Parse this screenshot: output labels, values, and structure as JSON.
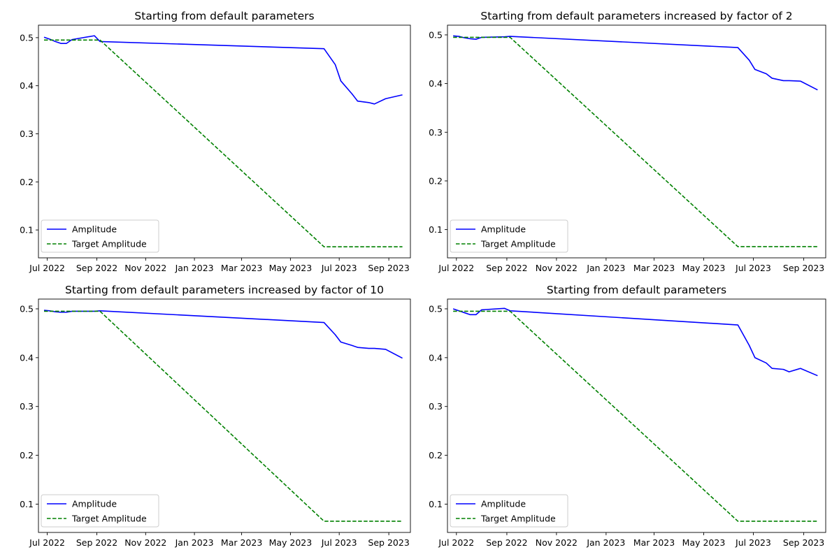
{
  "colors": {
    "amplitude": "#0000ff",
    "target": "#008000",
    "axes": "#000000",
    "legend_border": "#cccccc",
    "background": "#ffffff"
  },
  "chart_data": [
    {
      "type": "line",
      "title": "Starting from default parameters",
      "xlabel": "",
      "ylabel": "",
      "xlim": [
        "2022-06-20",
        "2023-09-28"
      ],
      "ylim": [
        0.042,
        0.526
      ],
      "x_ticks": [
        "2022-07-01",
        "2022-09-01",
        "2022-11-01",
        "2023-01-01",
        "2023-03-01",
        "2023-05-01",
        "2023-07-01",
        "2023-09-01"
      ],
      "x_tick_labels": [
        "Jul 2022",
        "Sep 2022",
        "Nov 2022",
        "Jan 2023",
        "Mar 2023",
        "May 2023",
        "Jul 2023",
        "Sep 2023"
      ],
      "y_ticks": [
        0.1,
        0.2,
        0.3,
        0.4,
        0.5
      ],
      "y_tick_labels": [
        "0.1",
        "0.2",
        "0.3",
        "0.4",
        "0.5"
      ],
      "legend": {
        "position": "lower left",
        "entries": [
          "Amplitude",
          "Target Amplitude"
        ]
      },
      "grid": false,
      "series": [
        {
          "name": "Amplitude",
          "style": "solid",
          "x": [
            "2022-06-27",
            "2022-07-04",
            "2022-07-11",
            "2022-07-18",
            "2022-07-25",
            "2022-08-01",
            "2022-08-29",
            "2022-09-05",
            "2023-06-12",
            "2023-06-26",
            "2023-07-03",
            "2023-07-17",
            "2023-07-24",
            "2023-08-07",
            "2023-08-14",
            "2023-08-28",
            "2023-09-18"
          ],
          "values": [
            0.501,
            0.497,
            0.492,
            0.488,
            0.488,
            0.496,
            0.504,
            0.492,
            0.477,
            0.444,
            0.41,
            0.383,
            0.368,
            0.365,
            0.362,
            0.373,
            0.381
          ]
        },
        {
          "name": "Target Amplitude",
          "style": "dashed",
          "x": [
            "2022-06-27",
            "2022-09-05",
            "2023-06-12",
            "2023-09-18"
          ],
          "values": [
            0.495,
            0.495,
            0.065,
            0.065
          ]
        }
      ]
    },
    {
      "type": "line",
      "title": "Starting from default parameters increased by factor of 2",
      "xlabel": "",
      "ylabel": "",
      "xlim": [
        "2022-06-20",
        "2023-09-28"
      ],
      "ylim": [
        0.042,
        0.52
      ],
      "x_ticks": [
        "2022-07-01",
        "2022-09-01",
        "2022-11-01",
        "2023-01-01",
        "2023-03-01",
        "2023-05-01",
        "2023-07-01",
        "2023-09-01"
      ],
      "x_tick_labels": [
        "Jul 2022",
        "Sep 2022",
        "Nov 2022",
        "Jan 2023",
        "Mar 2023",
        "May 2023",
        "Jul 2023",
        "Sep 2023"
      ],
      "y_ticks": [
        0.1,
        0.2,
        0.3,
        0.4,
        0.5
      ],
      "y_tick_labels": [
        "0.1",
        "0.2",
        "0.3",
        "0.4",
        "0.5"
      ],
      "legend": {
        "position": "lower left",
        "entries": [
          "Amplitude",
          "Target Amplitude"
        ]
      },
      "grid": false,
      "series": [
        {
          "name": "Amplitude",
          "style": "solid",
          "x": [
            "2022-06-27",
            "2022-07-04",
            "2022-07-11",
            "2022-07-18",
            "2022-07-25",
            "2022-08-01",
            "2022-08-29",
            "2022-09-05",
            "2023-06-12",
            "2023-06-26",
            "2023-07-03",
            "2023-07-17",
            "2023-07-24",
            "2023-08-07",
            "2023-08-14",
            "2023-08-28",
            "2023-09-18"
          ],
          "values": [
            0.498,
            0.497,
            0.494,
            0.492,
            0.491,
            0.495,
            0.496,
            0.497,
            0.474,
            0.448,
            0.429,
            0.42,
            0.411,
            0.406,
            0.406,
            0.405,
            0.387
          ]
        },
        {
          "name": "Target Amplitude",
          "style": "dashed",
          "x": [
            "2022-06-27",
            "2022-09-05",
            "2023-06-12",
            "2023-09-18"
          ],
          "values": [
            0.495,
            0.495,
            0.065,
            0.065
          ]
        }
      ]
    },
    {
      "type": "line",
      "title": "Starting from default parameters increased by factor of 10",
      "xlabel": "",
      "ylabel": "",
      "xlim": [
        "2022-06-20",
        "2023-09-28"
      ],
      "ylim": [
        0.042,
        0.52
      ],
      "x_ticks": [
        "2022-07-01",
        "2022-09-01",
        "2022-11-01",
        "2023-01-01",
        "2023-03-01",
        "2023-05-01",
        "2023-07-01",
        "2023-09-01"
      ],
      "x_tick_labels": [
        "Jul 2022",
        "Sep 2022",
        "Nov 2022",
        "Jan 2023",
        "Mar 2023",
        "May 2023",
        "Jul 2023",
        "Sep 2023"
      ],
      "y_ticks": [
        0.1,
        0.2,
        0.3,
        0.4,
        0.5
      ],
      "y_tick_labels": [
        "0.1",
        "0.2",
        "0.3",
        "0.4",
        "0.5"
      ],
      "legend": {
        "position": "lower left",
        "entries": [
          "Amplitude",
          "Target Amplitude"
        ]
      },
      "grid": false,
      "series": [
        {
          "name": "Amplitude",
          "style": "solid",
          "x": [
            "2022-06-27",
            "2022-07-04",
            "2022-07-11",
            "2022-07-18",
            "2022-07-25",
            "2022-08-01",
            "2022-08-29",
            "2022-09-05",
            "2023-06-12",
            "2023-06-26",
            "2023-07-03",
            "2023-07-17",
            "2023-07-24",
            "2023-08-07",
            "2023-08-14",
            "2023-08-28",
            "2023-09-18"
          ],
          "values": [
            0.497,
            0.496,
            0.494,
            0.493,
            0.493,
            0.495,
            0.495,
            0.496,
            0.472,
            0.447,
            0.432,
            0.425,
            0.421,
            0.419,
            0.419,
            0.417,
            0.399
          ]
        },
        {
          "name": "Target Amplitude",
          "style": "dashed",
          "x": [
            "2022-06-27",
            "2022-09-05",
            "2023-06-12",
            "2023-09-18"
          ],
          "values": [
            0.495,
            0.495,
            0.065,
            0.065
          ]
        }
      ]
    },
    {
      "type": "line",
      "title": "Starting from default parameters",
      "xlabel": "",
      "ylabel": "",
      "xlim": [
        "2022-06-20",
        "2023-09-28"
      ],
      "ylim": [
        0.042,
        0.52
      ],
      "x_ticks": [
        "2022-07-01",
        "2022-09-01",
        "2022-11-01",
        "2023-01-01",
        "2023-03-01",
        "2023-05-01",
        "2023-07-01",
        "2023-09-01"
      ],
      "x_tick_labels": [
        "Jul 2022",
        "Sep 2022",
        "Nov 2022",
        "Jan 2023",
        "Mar 2023",
        "May 2023",
        "Jul 2023",
        "Sep 2023"
      ],
      "y_ticks": [
        0.1,
        0.2,
        0.3,
        0.4,
        0.5
      ],
      "y_tick_labels": [
        "0.1",
        "0.2",
        "0.3",
        "0.4",
        "0.5"
      ],
      "legend": {
        "position": "lower left",
        "entries": [
          "Amplitude",
          "Target Amplitude"
        ]
      },
      "grid": false,
      "series": [
        {
          "name": "Amplitude",
          "style": "solid",
          "x": [
            "2022-06-27",
            "2022-07-04",
            "2022-07-11",
            "2022-07-18",
            "2022-07-25",
            "2022-08-01",
            "2022-08-29",
            "2022-09-05",
            "2023-06-12",
            "2023-06-26",
            "2023-07-03",
            "2023-07-17",
            "2023-07-24",
            "2023-08-07",
            "2023-08-14",
            "2023-08-28",
            "2023-09-18"
          ],
          "values": [
            0.5,
            0.496,
            0.492,
            0.488,
            0.488,
            0.498,
            0.501,
            0.496,
            0.467,
            0.425,
            0.4,
            0.389,
            0.378,
            0.376,
            0.371,
            0.378,
            0.363
          ]
        },
        {
          "name": "Target Amplitude",
          "style": "dashed",
          "x": [
            "2022-06-27",
            "2022-09-05",
            "2023-06-12",
            "2023-09-18"
          ],
          "values": [
            0.495,
            0.495,
            0.065,
            0.065
          ]
        }
      ]
    }
  ]
}
